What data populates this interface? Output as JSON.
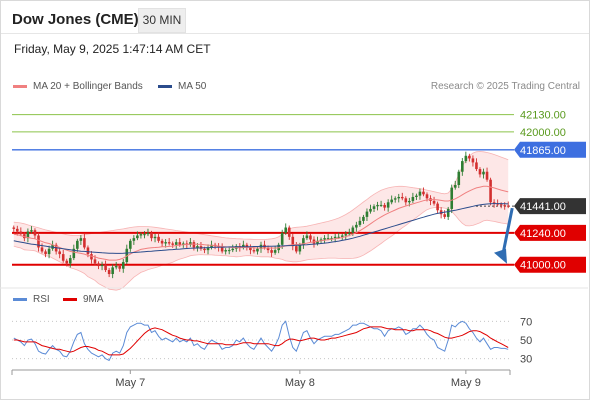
{
  "header": {
    "title": "Dow Jones (CME)",
    "timeframe": "30 MIN",
    "datetime": "Friday, May 9, 2025 1:47:14 AM CET"
  },
  "legend": {
    "ma20_label": "MA 20 + Bollinger Bands",
    "ma50_label": "MA 50",
    "rsi_label": "RSI",
    "rsi_ma_label": "9MA",
    "copyright": "Research © 2025 Trading Central"
  },
  "colors": {
    "up": "#2e7d32",
    "down": "#d32f2f",
    "ma20": "#f08080",
    "ma50": "#2b4c8c",
    "band_fill": "#fde3e3",
    "resistance_green": "#8bc34a",
    "resistance_blue": "#3d6fe0",
    "support_red": "#e00000",
    "arrow": "#2f6db3",
    "rsi": "#5b8bd6",
    "rsi_ma": "#e00000"
  },
  "chart_data": [
    {
      "type": "line",
      "name": "price",
      "x_ticks": [
        "May 7",
        "May 8",
        "May 9"
      ],
      "ylim": [
        40870,
        42270
      ],
      "levels": [
        {
          "value": 42130,
          "label": "42130.00",
          "kind": "resistance-green"
        },
        {
          "value": 42000,
          "label": "42000.00",
          "kind": "resistance-green"
        },
        {
          "value": 41865,
          "label": "41865.00",
          "kind": "resistance-blue"
        },
        {
          "value": 41441,
          "label": "41441.00",
          "kind": "last-price"
        },
        {
          "value": 41240,
          "label": "41240.00",
          "kind": "support-red"
        },
        {
          "value": 41000,
          "label": "41000.00",
          "kind": "support-red"
        }
      ],
      "close": [
        41270,
        41250,
        41230,
        41200,
        41250,
        41260,
        41220,
        41130,
        41100,
        41080,
        41120,
        41150,
        41100,
        41080,
        41030,
        41010,
        41050,
        41120,
        41180,
        41200,
        41130,
        41080,
        41040,
        41010,
        40990,
        41000,
        40960,
        40930,
        40980,
        40990,
        40970,
        41020,
        41120,
        41180,
        41200,
        41220,
        41230,
        41230,
        41240,
        41200,
        41210,
        41180,
        41160,
        41170,
        41160,
        41150,
        41170,
        41150,
        41160,
        41150,
        41170,
        41130,
        41140,
        41120,
        41110,
        41130,
        41150,
        41140,
        41130,
        41100,
        41110,
        41110,
        41120,
        41140,
        41130,
        41150,
        41130,
        41110,
        41100,
        41120,
        41150,
        41130,
        41110,
        41090,
        41110,
        41150,
        41240,
        41280,
        41210,
        41140,
        41100,
        41150,
        41200,
        41220,
        41190,
        41160,
        41180,
        41190,
        41200,
        41200,
        41200,
        41210,
        41210,
        41220,
        41230,
        41240,
        41280,
        41300,
        41330,
        41360,
        41400,
        41420,
        41440,
        41450,
        41450,
        41430,
        41470,
        41490,
        41500,
        41510,
        41500,
        41470,
        41480,
        41510,
        41520,
        41550,
        41530,
        41500,
        41480,
        41460,
        41410,
        41380,
        41360,
        41420,
        41580,
        41600,
        41700,
        41780,
        41820,
        41800,
        41770,
        41720,
        41680,
        41700,
        41640,
        41470,
        41460,
        41455,
        41448,
        41445,
        41441
      ],
      "ma20": [
        41230,
        41225,
        41220,
        41210,
        41205,
        41200,
        41195,
        41185,
        41175,
        41165,
        41160,
        41150,
        41140,
        41130,
        41120,
        41110,
        41100,
        41095,
        41090,
        41085,
        41080,
        41070,
        41065,
        41060,
        41050,
        41045,
        41040,
        41035,
        41035,
        41035,
        41040,
        41050,
        41065,
        41080,
        41095,
        41105,
        41115,
        41120,
        41125,
        41128,
        41130,
        41132,
        41135,
        41136,
        41138,
        41140,
        41145,
        41148,
        41150,
        41152,
        41155,
        41155,
        41154,
        41153,
        41150,
        41148,
        41146,
        41143,
        41140,
        41137,
        41135,
        41132,
        41130,
        41128,
        41128,
        41130,
        41131,
        41130,
        41128,
        41126,
        41125,
        41125,
        41126,
        41126,
        41125,
        41128,
        41135,
        41142,
        41148,
        41150,
        41152,
        41154,
        41158,
        41163,
        41168,
        41172,
        41176,
        41180,
        41184,
        41188,
        41192,
        41196,
        41200,
        41205,
        41212,
        41220,
        41230,
        41242,
        41256,
        41272,
        41290,
        41308,
        41326,
        41344,
        41360,
        41375,
        41388,
        41400,
        41412,
        41424,
        41434,
        41442,
        41450,
        41458,
        41466,
        41474,
        41482,
        41488,
        41490,
        41490,
        41488,
        41484,
        41480,
        41480,
        41486,
        41496,
        41510,
        41526,
        41542,
        41556,
        41568,
        41578,
        41584,
        41590,
        41590,
        41584,
        41578,
        41570,
        41562,
        41555,
        41548
      ],
      "ma50": [
        41180,
        41175,
        41170,
        41165,
        41160,
        41155,
        41152,
        41148,
        41144,
        41140,
        41136,
        41132,
        41128,
        41124,
        41120,
        41116,
        41112,
        41108,
        41105,
        41102,
        41100,
        41098,
        41096,
        41094,
        41092,
        41090,
        41088,
        41087,
        41086,
        41085,
        41085,
        41086,
        41088,
        41090,
        41092,
        41094,
        41096,
        41098,
        41100,
        41102,
        41104,
        41106,
        41108,
        41110,
        41112,
        41114,
        41116,
        41118,
        41120,
        41122,
        41124,
        41125,
        41126,
        41127,
        41128,
        41129,
        41130,
        41131,
        41132,
        41133,
        41133,
        41134,
        41134,
        41135,
        41135,
        41136,
        41136,
        41136,
        41137,
        41137,
        41138,
        41138,
        41139,
        41139,
        41140,
        41141,
        41142,
        41143,
        41144,
        41145,
        41146,
        41147,
        41149,
        41151,
        41153,
        41155,
        41157,
        41160,
        41163,
        41166,
        41170,
        41174,
        41178,
        41183,
        41188,
        41194,
        41200,
        41207,
        41214,
        41222,
        41230,
        41238,
        41246,
        41254,
        41262,
        41270,
        41278,
        41286,
        41294,
        41302,
        41310,
        41318,
        41326,
        41334,
        41342,
        41350,
        41358,
        41366,
        41373,
        41380,
        41386,
        41391,
        41396,
        41400,
        41405,
        41410,
        41416,
        41422,
        41428,
        41434,
        41440,
        41446,
        41450,
        41454,
        41457,
        41459,
        41460,
        41460,
        41460,
        41459,
        41458
      ],
      "bb_upper": [
        41320,
        41318,
        41314,
        41308,
        41300,
        41292,
        41285,
        41278,
        41270,
        41262,
        41256,
        41250,
        41244,
        41238,
        41232,
        41226,
        41222,
        41220,
        41220,
        41222,
        41226,
        41230,
        41234,
        41238,
        41242,
        41246,
        41250,
        41254,
        41258,
        41262,
        41266,
        41270,
        41275,
        41280,
        41284,
        41286,
        41288,
        41288,
        41287,
        41285,
        41282,
        41278,
        41274,
        41270,
        41266,
        41262,
        41258,
        41254,
        41250,
        41246,
        41242,
        41238,
        41234,
        41230,
        41226,
        41222,
        41218,
        41214,
        41210,
        41206,
        41202,
        41200,
        41198,
        41196,
        41195,
        41194,
        41193,
        41192,
        41191,
        41190,
        41190,
        41190,
        41192,
        41195,
        41200,
        41210,
        41230,
        41255,
        41270,
        41278,
        41282,
        41284,
        41286,
        41290,
        41296,
        41302,
        41308,
        41314,
        41320,
        41326,
        41334,
        41342,
        41352,
        41364,
        41378,
        41394,
        41412,
        41432,
        41452,
        41472,
        41492,
        41512,
        41530,
        41546,
        41560,
        41570,
        41578,
        41584,
        41588,
        41590,
        41590,
        41588,
        41584,
        41580,
        41576,
        41572,
        41568,
        41562,
        41556,
        41550,
        41544,
        41538,
        41534,
        41540,
        41570,
        41620,
        41680,
        41740,
        41790,
        41820,
        41840,
        41850,
        41852,
        41850,
        41845,
        41838,
        41830,
        41820,
        41810,
        41800,
        41790
      ],
      "bb_lower": [
        41140,
        41132,
        41126,
        41112,
        41110,
        41108,
        41105,
        41092,
        41080,
        41068,
        41064,
        41050,
        41036,
        41022,
        41008,
        40994,
        40978,
        40970,
        40960,
        40948,
        40934,
        40910,
        40896,
        40882,
        40858,
        40844,
        40830,
        40816,
        40812,
        40808,
        40814,
        40830,
        40855,
        40880,
        40906,
        40924,
        40942,
        40952,
        40963,
        40971,
        40978,
        40986,
        40996,
        41002,
        41010,
        41018,
        41032,
        41042,
        41050,
        41058,
        41068,
        41072,
        41074,
        41076,
        41074,
        41074,
        41074,
        41072,
        41070,
        41068,
        41068,
        41064,
        41062,
        41060,
        41061,
        41066,
        41069,
        41068,
        41065,
        41062,
        41060,
        41060,
        41060,
        41057,
        41050,
        41046,
        41040,
        41029,
        41026,
        41022,
        41022,
        41024,
        41030,
        41036,
        41040,
        41042,
        41044,
        41046,
        41048,
        41050,
        41050,
        41050,
        41048,
        41046,
        41046,
        41046,
        41048,
        41052,
        41060,
        41072,
        41088,
        41104,
        41122,
        41142,
        41160,
        41180,
        41198,
        41216,
        41236,
        41258,
        41278,
        41296,
        41316,
        41336,
        41356,
        41376,
        41396,
        41414,
        41424,
        41430,
        41432,
        41430,
        41426,
        41420,
        41402,
        41372,
        41340,
        41312,
        41294,
        41292,
        41296,
        41306,
        41316,
        41330,
        41335,
        41330,
        41326,
        41320,
        41314,
        41310,
        41306
      ]
    },
    {
      "type": "line",
      "name": "rsi",
      "ylim": [
        20,
        80
      ],
      "y_ticks": [
        70,
        50,
        30
      ],
      "rsi": [
        52,
        50,
        48,
        44,
        50,
        51,
        46,
        38,
        36,
        35,
        40,
        44,
        40,
        38,
        33,
        32,
        38,
        48,
        56,
        58,
        46,
        40,
        36,
        34,
        32,
        34,
        30,
        28,
        36,
        38,
        36,
        44,
        58,
        64,
        66,
        68,
        68,
        66,
        66,
        58,
        60,
        54,
        50,
        52,
        50,
        48,
        52,
        48,
        50,
        48,
        52,
        44,
        46,
        42,
        40,
        46,
        50,
        48,
        46,
        40,
        42,
        42,
        44,
        50,
        48,
        52,
        46,
        42,
        40,
        46,
        52,
        46,
        42,
        38,
        44,
        52,
        66,
        70,
        54,
        42,
        38,
        48,
        58,
        60,
        52,
        46,
        50,
        52,
        54,
        54,
        54,
        56,
        56,
        58,
        60,
        62,
        66,
        66,
        68,
        68,
        66,
        64,
        62,
        62,
        60,
        54,
        60,
        62,
        62,
        64,
        62,
        56,
        58,
        62,
        62,
        66,
        62,
        56,
        52,
        50,
        42,
        40,
        38,
        50,
        66,
        64,
        68,
        70,
        68,
        62,
        58,
        52,
        48,
        52,
        46,
        40,
        42,
        42,
        41,
        41,
        40
      ],
      "rsi_ma": [
        50,
        50,
        49,
        48,
        48,
        48,
        48,
        46,
        44,
        43,
        42,
        41,
        40,
        40,
        39,
        38,
        37,
        38,
        40,
        42,
        43,
        43,
        42,
        41,
        39,
        38,
        36,
        34,
        34,
        34,
        34,
        35,
        38,
        41,
        45,
        49,
        53,
        57,
        60,
        62,
        63,
        62,
        61,
        59,
        57,
        55,
        54,
        52,
        51,
        50,
        50,
        49,
        49,
        48,
        47,
        46,
        46,
        46,
        46,
        46,
        45,
        45,
        45,
        45,
        46,
        47,
        47,
        47,
        46,
        46,
        46,
        46,
        46,
        45,
        44,
        44,
        46,
        49,
        51,
        51,
        50,
        49,
        50,
        51,
        52,
        52,
        51,
        50,
        50,
        51,
        52,
        52,
        53,
        54,
        55,
        56,
        57,
        58,
        60,
        62,
        63,
        64,
        64,
        64,
        64,
        63,
        62,
        62,
        61,
        61,
        61,
        61,
        60,
        60,
        61,
        61,
        61,
        61,
        60,
        58,
        57,
        55,
        53,
        52,
        52,
        53,
        54,
        55,
        57,
        59,
        60,
        60,
        59,
        57,
        55,
        52,
        50,
        48,
        46,
        44,
        42
      ]
    }
  ]
}
